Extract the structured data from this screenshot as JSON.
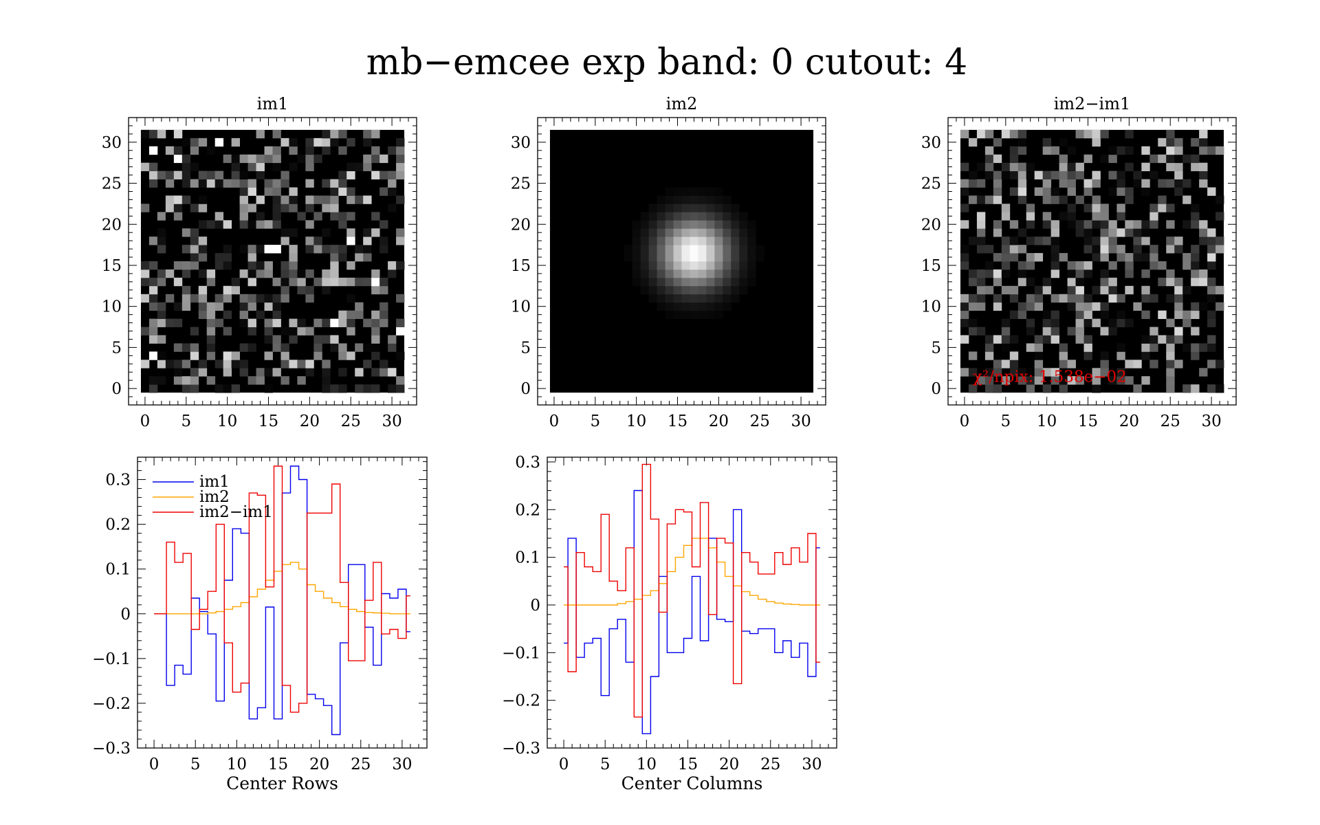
{
  "figure": {
    "title": "mb−emcee exp band: 0 cutout: 4"
  },
  "chart_data": [
    {
      "type": "heatmap",
      "title": "im1",
      "grid_size": [
        32,
        32
      ],
      "colormap": "gray",
      "content": "noise image, faint source near (15,17)",
      "xlim": [
        -2,
        33
      ],
      "ylim": [
        -2,
        33
      ],
      "xticks": [
        "0",
        "5",
        "10",
        "15",
        "20",
        "25",
        "30"
      ],
      "yticks": [
        "0",
        "5",
        "10",
        "15",
        "20",
        "25",
        "30"
      ],
      "bright_pixels": [
        {
          "x": 1,
          "y": 29
        },
        {
          "x": 4,
          "y": 28
        },
        {
          "x": 9,
          "y": 30
        },
        {
          "x": 15,
          "y": 17
        },
        {
          "x": 16,
          "y": 17
        },
        {
          "x": 25,
          "y": 18
        },
        {
          "x": 28,
          "y": 13
        },
        {
          "x": 1,
          "y": 4
        },
        {
          "x": 31,
          "y": 7
        },
        {
          "x": 23,
          "y": 8
        }
      ]
    },
    {
      "type": "heatmap",
      "title": "im2",
      "grid_size": [
        32,
        32
      ],
      "colormap": "gray",
      "content": "model: smooth gaussian blob",
      "center": [
        17,
        16.5
      ],
      "sigma": 2.9,
      "xlim": [
        -2,
        33
      ],
      "ylim": [
        -2,
        33
      ],
      "xticks": [
        "0",
        "5",
        "10",
        "15",
        "20",
        "25",
        "30"
      ],
      "yticks": [
        "0",
        "5",
        "10",
        "15",
        "20",
        "25",
        "30"
      ]
    },
    {
      "type": "heatmap",
      "title": "im2−im1",
      "grid_size": [
        32,
        32
      ],
      "colormap": "gray",
      "content": "residual noise image",
      "xlim": [
        -2,
        33
      ],
      "ylim": [
        -2,
        33
      ],
      "xticks": [
        "0",
        "5",
        "10",
        "15",
        "20",
        "25",
        "30"
      ],
      "yticks": [
        "0",
        "5",
        "10",
        "15",
        "20",
        "25",
        "30"
      ],
      "annotation": "χ²/npix: 1.538e−02",
      "annotation_color": "#e00000"
    },
    {
      "type": "line",
      "step": true,
      "xlabel": "Center Rows",
      "xlim": [
        -2,
        33
      ],
      "ylim": [
        -0.3,
        0.35
      ],
      "xticks": [
        "0",
        "5",
        "10",
        "15",
        "20",
        "25",
        "30"
      ],
      "yticks": [
        {
          "v": 0.3,
          "l": "0.3"
        },
        {
          "v": 0.2,
          "l": "0.2"
        },
        {
          "v": 0.1,
          "l": "0.1"
        },
        {
          "v": 0.0,
          "l": "0"
        },
        {
          "v": -0.1,
          "l": "−0.1"
        },
        {
          "v": -0.2,
          "l": "−0.2"
        },
        {
          "v": -0.3,
          "l": "−0.3"
        }
      ],
      "legend_position": "top-left",
      "x": [
        0,
        1,
        2,
        3,
        4,
        5,
        6,
        7,
        8,
        9,
        10,
        11,
        12,
        13,
        14,
        15,
        16,
        17,
        18,
        19,
        20,
        21,
        22,
        23,
        24,
        25,
        26,
        27,
        28,
        29,
        30,
        31
      ],
      "series": [
        {
          "name": "im1",
          "color": "#0000ee",
          "values": [
            0,
            0,
            -0.16,
            -0.115,
            -0.135,
            0.035,
            0.005,
            -0.045,
            -0.195,
            0.075,
            0.19,
            0.18,
            -0.235,
            -0.21,
            0.015,
            -0.235,
            0.27,
            0.33,
            0.3,
            -0.18,
            -0.19,
            -0.205,
            -0.27,
            -0.065,
            0.11,
            0.11,
            -0.03,
            -0.115,
            0.045,
            0.035,
            0.055,
            -0.04
          ]
        },
        {
          "name": "im2",
          "color": "#ffa500",
          "values": [
            0,
            0,
            0,
            0,
            0,
            0,
            0,
            0.002,
            0.005,
            0.01,
            0.016,
            0.025,
            0.038,
            0.055,
            0.075,
            0.095,
            0.11,
            0.115,
            0.1,
            0.065,
            0.05,
            0.035,
            0.025,
            0.016,
            0.01,
            0.005,
            0.003,
            0.002,
            0.001,
            0,
            0,
            0
          ]
        },
        {
          "name": "im2−im1",
          "color": "#ee0000",
          "values": [
            0,
            0,
            0.16,
            0.115,
            0.135,
            -0.035,
            0.01,
            0.05,
            0.2,
            -0.065,
            -0.175,
            -0.155,
            0.27,
            0.265,
            0.06,
            0.33,
            -0.16,
            -0.22,
            -0.2,
            0.225,
            0.225,
            0.225,
            0.29,
            0.07,
            -0.105,
            -0.105,
            0.03,
            0.115,
            -0.045,
            -0.035,
            -0.055,
            0.04
          ]
        }
      ]
    },
    {
      "type": "line",
      "step": true,
      "xlabel": "Center Columns",
      "xlim": [
        -2,
        33
      ],
      "ylim": [
        -0.3,
        0.31
      ],
      "xticks": [
        "0",
        "5",
        "10",
        "15",
        "20",
        "25",
        "30"
      ],
      "yticks": [
        {
          "v": 0.3,
          "l": "0.3"
        },
        {
          "v": 0.2,
          "l": "0.2"
        },
        {
          "v": 0.1,
          "l": "0.1"
        },
        {
          "v": 0.0,
          "l": "0"
        },
        {
          "v": -0.1,
          "l": "−0.1"
        },
        {
          "v": -0.2,
          "l": "−0.2"
        },
        {
          "v": -0.3,
          "l": "−0.3"
        }
      ],
      "x": [
        0,
        1,
        2,
        3,
        4,
        5,
        6,
        7,
        8,
        9,
        10,
        11,
        12,
        13,
        14,
        15,
        16,
        17,
        18,
        19,
        20,
        21,
        22,
        23,
        24,
        25,
        26,
        27,
        28,
        29,
        30,
        31
      ],
      "series": [
        {
          "name": "im1",
          "color": "#0000ee",
          "values": [
            -0.08,
            0.14,
            -0.11,
            -0.08,
            -0.07,
            -0.19,
            -0.05,
            -0.03,
            -0.12,
            0.24,
            -0.27,
            -0.15,
            0.06,
            -0.1,
            -0.1,
            -0.07,
            0.06,
            -0.075,
            0.14,
            -0.03,
            -0.035,
            0.2,
            -0.055,
            -0.06,
            -0.05,
            -0.05,
            -0.1,
            -0.075,
            -0.11,
            -0.08,
            -0.15,
            0.12
          ]
        },
        {
          "name": "im2",
          "color": "#ffa500",
          "values": [
            0,
            0,
            0,
            0,
            0,
            0,
            0,
            0.003,
            0.007,
            0.012,
            0.02,
            0.03,
            0.045,
            0.07,
            0.1,
            0.125,
            0.14,
            0.14,
            0.12,
            0.09,
            0.06,
            0.04,
            0.028,
            0.02,
            0.012,
            0.007,
            0.004,
            0.002,
            0.001,
            0,
            0,
            0
          ]
        },
        {
          "name": "im2−im1",
          "color": "#ee0000",
          "values": [
            0.08,
            -0.14,
            0.11,
            0.08,
            0.07,
            0.19,
            0.05,
            0.03,
            0.12,
            -0.235,
            0.295,
            0.18,
            -0.015,
            0.17,
            0.2,
            0.195,
            0.08,
            0.215,
            -0.02,
            0.14,
            0.13,
            -0.165,
            0.11,
            0.09,
            0.065,
            0.065,
            0.11,
            0.085,
            0.12,
            0.09,
            0.15,
            -0.12
          ]
        }
      ]
    }
  ]
}
